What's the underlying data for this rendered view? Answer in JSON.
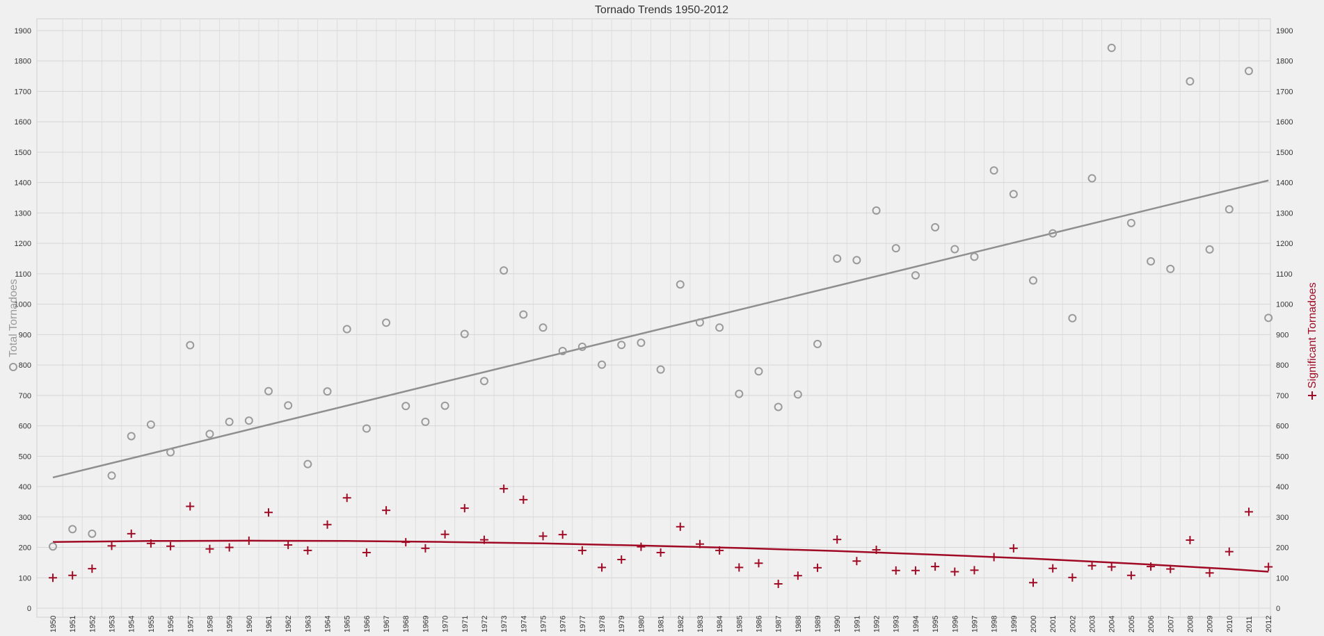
{
  "chart_data": {
    "type": "scatter",
    "title": "Tornado Trends 1950-2012",
    "ylabel_left": "Total Tornadoes",
    "ylabel_right": "Significant Tornadoes",
    "left_marker": "O",
    "right_marker": "+",
    "ylim": [
      0,
      1900
    ],
    "yticks": [
      0,
      100,
      200,
      300,
      400,
      500,
      600,
      700,
      800,
      900,
      1000,
      1100,
      1200,
      1300,
      1400,
      1500,
      1600,
      1700,
      1800,
      1900
    ],
    "x": [
      1950,
      1951,
      1952,
      1953,
      1954,
      1955,
      1956,
      1957,
      1958,
      1959,
      1960,
      1961,
      1962,
      1963,
      1964,
      1965,
      1966,
      1967,
      1968,
      1969,
      1970,
      1971,
      1972,
      1973,
      1974,
      1975,
      1976,
      1977,
      1978,
      1979,
      1980,
      1981,
      1982,
      1983,
      1984,
      1985,
      1986,
      1987,
      1988,
      1989,
      1990,
      1991,
      1992,
      1993,
      1994,
      1995,
      1996,
      1997,
      1998,
      1999,
      2000,
      2001,
      2002,
      2003,
      2004,
      2005,
      2006,
      2007,
      2008,
      2009,
      2010,
      2011,
      2012
    ],
    "xtick_labels": [
      "1950",
      "1951",
      "1952",
      "1953",
      "1954",
      "1955",
      "1956",
      "1957",
      "1958",
      "1959",
      "1960",
      "1961",
      "1962",
      "1963",
      "1964",
      "1965",
      "1966",
      "1967",
      "1968",
      "1969",
      "1970",
      "1971",
      "1972",
      "1973",
      "1974",
      "1975",
      "1976",
      "1977",
      "1978",
      "1979",
      "1980",
      "1981",
      "1982",
      "1983",
      "1984",
      "1985",
      "1986",
      "1987",
      "1988",
      "1989",
      "1990",
      "1991",
      "1992",
      "1993",
      "1994",
      "1995",
      "1996",
      "1997",
      "1998",
      "1999",
      "2000",
      "2001",
      "2002",
      "2003",
      "2004",
      "2005",
      "2006",
      "2007",
      "2008",
      "2009",
      "2010",
      "2011",
      "2012"
    ],
    "series": [
      {
        "name": "Total Tornadoes",
        "marker": "circle",
        "color": "#9a9a9a",
        "values": [
          203,
          260,
          245,
          436,
          566,
          604,
          513,
          865,
          573,
          613,
          617,
          714,
          667,
          474,
          713,
          918,
          591,
          939,
          665,
          613,
          666,
          902,
          747,
          1111,
          966,
          923,
          846,
          860,
          801,
          866,
          873,
          785,
          1065,
          940,
          923,
          705,
          779,
          662,
          703,
          869,
          1150,
          1145,
          1308,
          1184,
          1095,
          1253,
          1181,
          1156,
          1440,
          1362,
          1078,
          1233,
          954,
          1414,
          1843,
          1267,
          1141,
          1116,
          1733,
          1180,
          1312,
          1767,
          955
        ]
      },
      {
        "name": "Significant Tornadoes",
        "marker": "plus",
        "color": "#a00a24",
        "values": [
          100,
          108,
          130,
          205,
          245,
          213,
          204,
          335,
          195,
          200,
          222,
          315,
          208,
          190,
          275,
          363,
          183,
          322,
          217,
          197,
          243,
          329,
          225,
          393,
          357,
          237,
          242,
          190,
          134,
          160,
          202,
          183,
          268,
          211,
          190,
          134,
          148,
          80,
          107,
          133,
          226,
          155,
          192,
          124,
          124,
          137,
          120,
          125,
          168,
          197,
          84,
          131,
          101,
          140,
          136,
          108,
          137,
          129,
          224,
          116,
          186,
          317,
          136
        ]
      }
    ],
    "trendlines": [
      {
        "series": "Total Tornadoes",
        "color": "#8f8f8f",
        "x": [
          1950,
          2012
        ],
        "y": [
          430,
          1407
        ]
      },
      {
        "series": "Significant Tornadoes",
        "color": "#a00a24",
        "points": [
          [
            1950,
            218
          ],
          [
            1955,
            221
          ],
          [
            1960,
            222
          ],
          [
            1965,
            221
          ],
          [
            1970,
            218
          ],
          [
            1975,
            213
          ],
          [
            1980,
            206
          ],
          [
            1985,
            198
          ],
          [
            1990,
            188
          ],
          [
            1995,
            176
          ],
          [
            2000,
            163
          ],
          [
            2005,
            147
          ],
          [
            2010,
            129
          ],
          [
            2012,
            120
          ]
        ]
      }
    ],
    "grid": true,
    "background": "#f0f0f0",
    "grid_color": "#d6d6d6"
  }
}
